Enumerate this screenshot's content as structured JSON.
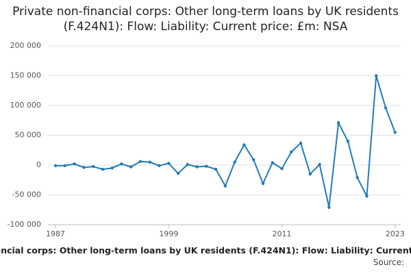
{
  "chart_data": {
    "type": "line",
    "title": "Private non-financial corps: Other long-term loans by UK residents (F.424N1): Flow: Liability: Current price: £m: NSA",
    "source": "Source:",
    "x": [
      1987,
      1988,
      1989,
      1990,
      1991,
      1992,
      1993,
      1994,
      1995,
      1996,
      1997,
      1998,
      1999,
      2000,
      2001,
      2002,
      2003,
      2004,
      2005,
      2006,
      2007,
      2008,
      2009,
      2010,
      2011,
      2012,
      2013,
      2014,
      2015,
      2016,
      2017,
      2018,
      2019,
      2020,
      2021,
      2022,
      2023
    ],
    "series": [
      {
        "name": "F.424N1",
        "color": "#1f7ab8",
        "values": [
          -1000,
          -1000,
          2000,
          -4000,
          -2500,
          -7000,
          -5000,
          2000,
          -3000,
          6000,
          5000,
          -1000,
          3000,
          -14000,
          1000,
          -3000,
          -2000,
          -7000,
          -35000,
          5000,
          34000,
          9000,
          -31000,
          4000,
          -6000,
          22000,
          37000,
          -15000,
          1000,
          -71000,
          71000,
          40000,
          -21000,
          -52000,
          150000,
          96000,
          55000
        ]
      }
    ],
    "xlim": [
      1986.2,
      2023.6
    ],
    "xticks": [
      1987,
      1999,
      2011,
      2023
    ],
    "ylim": [
      -100000,
      200000
    ],
    "yticks": [
      {
        "value": -100000,
        "label": "-100 000"
      },
      {
        "value": -50000,
        "label": "-50 000"
      },
      0,
      {
        "value": 50000,
        "label": "50 000"
      },
      {
        "value": 100000,
        "label": "100 000"
      },
      {
        "value": 150000,
        "label": "150 000"
      },
      {
        "value": 200000,
        "label": "200 000"
      }
    ],
    "grid": true
  }
}
